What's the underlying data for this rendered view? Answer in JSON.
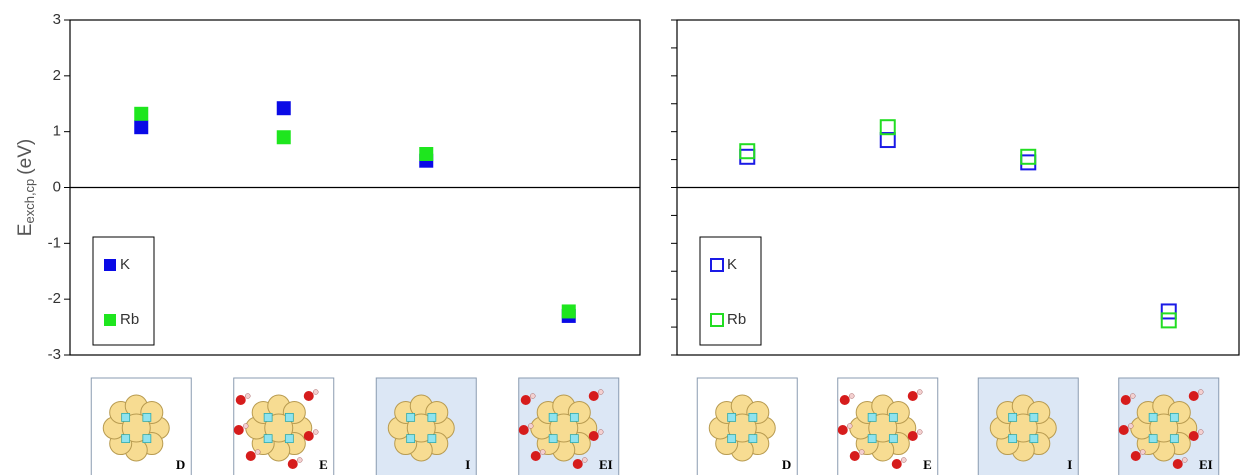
{
  "chart_data": [
    {
      "type": "scatter",
      "marker": "filled",
      "y_label": {
        "main": "E",
        "sub": "exch,cp",
        "unit": "(eV)"
      },
      "categories": [
        "D",
        "E",
        "I",
        "EI"
      ],
      "series": [
        {
          "name": "K",
          "color": "#0a0ae6",
          "values": [
            1.08,
            1.42,
            0.48,
            -2.3
          ]
        },
        {
          "name": "Rb",
          "color": "#1ee61e",
          "values": [
            1.32,
            0.9,
            0.6,
            -2.22
          ]
        }
      ],
      "ylim": [
        -3,
        3
      ],
      "yticks": [
        -3,
        -2,
        -1,
        0,
        1,
        2,
        3
      ],
      "tick_labels": true,
      "legend": "lower-left"
    },
    {
      "type": "scatter",
      "marker": "open",
      "categories": [
        "D",
        "E",
        "I",
        "EI"
      ],
      "series": [
        {
          "name": "K",
          "color": "#1a1ae6",
          "values": [
            0.55,
            0.85,
            0.45,
            -2.22
          ]
        },
        {
          "name": "Rb",
          "color": "#22dd22",
          "values": [
            0.65,
            1.08,
            0.55,
            -2.38
          ]
        }
      ],
      "ylim": [
        -3,
        3
      ],
      "yticks": [
        -3,
        -2.5,
        -2,
        -1.5,
        -1,
        -0.5,
        0,
        0.5,
        1,
        1.5,
        2,
        2.5,
        3
      ],
      "tick_labels": false,
      "legend": "lower-left"
    }
  ]
}
